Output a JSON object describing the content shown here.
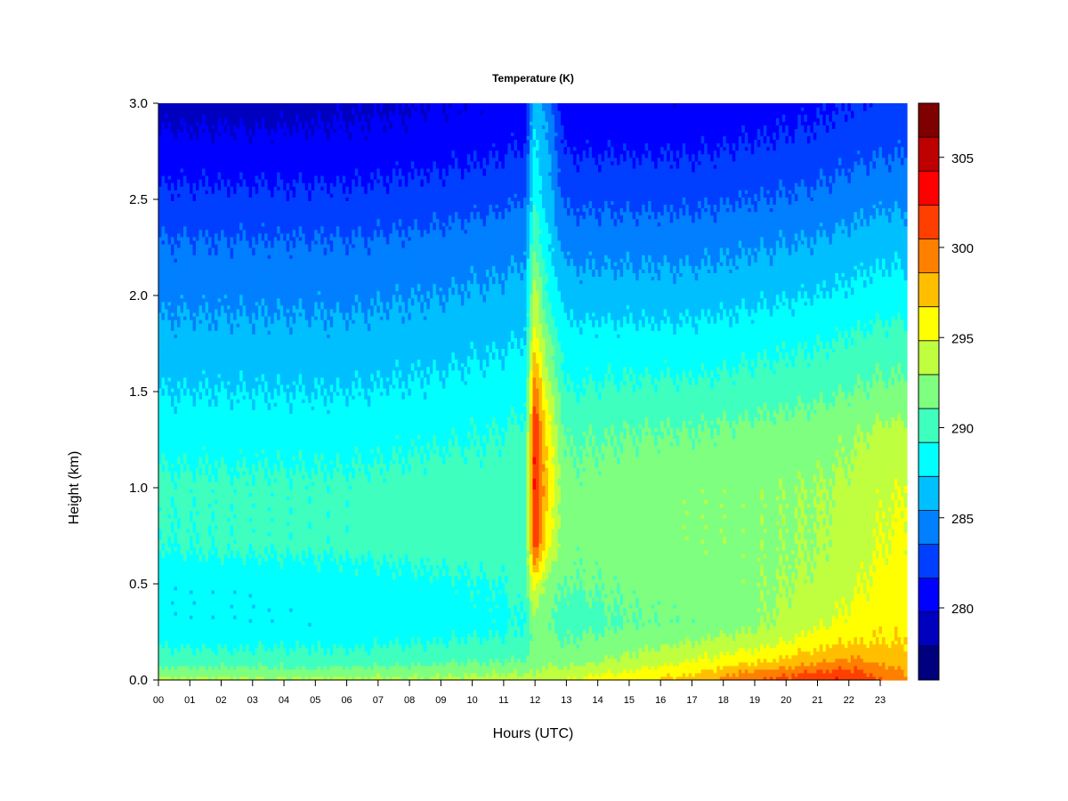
{
  "chart_data": {
    "type": "heatmap",
    "title": "Temperature (K)",
    "xlabel": "Hours (UTC)",
    "ylabel": "Height (km)",
    "x_ticks": [
      "00",
      "01",
      "02",
      "03",
      "04",
      "05",
      "06",
      "07",
      "08",
      "09",
      "10",
      "11",
      "12",
      "13",
      "14",
      "15",
      "16",
      "17",
      "18",
      "19",
      "20",
      "21",
      "22",
      "23"
    ],
    "y_ticks": [
      "0.0",
      "0.5",
      "1.0",
      "1.5",
      "2.0",
      "2.5",
      "3.0"
    ],
    "xlim": [
      0,
      23.85
    ],
    "ylim": [
      0,
      3.0
    ],
    "colorbar": {
      "min": 276,
      "max": 308,
      "step": 2,
      "tick_labels": [
        "280",
        "285",
        "290",
        "295",
        "300",
        "305"
      ],
      "colors": [
        "#00007F",
        "#0000BF",
        "#0000FF",
        "#003FFF",
        "#007FFF",
        "#00BFFF",
        "#00FFFF",
        "#3FFFBF",
        "#7FFF7F",
        "#BFFF3F",
        "#FFFF00",
        "#FFBF00",
        "#FF7F00",
        "#FF3F00",
        "#FF0000",
        "#BF0000",
        "#7F0000"
      ]
    },
    "temperature_profile": {
      "heights_km": [
        0.0,
        0.05,
        0.1,
        0.2,
        0.3,
        0.5,
        0.7,
        1.0,
        1.3,
        1.5,
        1.8,
        2.0,
        2.3,
        2.5,
        2.8,
        3.0
      ],
      "hours": [
        0,
        3,
        6,
        9,
        11,
        11.7,
        12.0,
        12.4,
        13,
        15,
        17,
        19,
        21,
        22,
        23,
        23.85
      ],
      "values_K": [
        [
          294.5,
          292.5,
          291.0,
          289.5,
          288.5,
          288.5,
          290.0,
          290.5,
          289.0,
          288.0,
          286.5,
          285.5,
          284.0,
          282.5,
          280.5,
          279.0
        ],
        [
          294.5,
          292.5,
          291.0,
          289.5,
          288.5,
          288.5,
          290.5,
          290.5,
          289.0,
          288.0,
          286.5,
          285.5,
          284.0,
          282.5,
          280.5,
          279.0
        ],
        [
          294.5,
          292.5,
          291.0,
          289.5,
          288.5,
          289.0,
          290.5,
          290.5,
          289.0,
          288.0,
          286.5,
          285.5,
          284.0,
          282.5,
          280.5,
          279.5
        ],
        [
          294.5,
          293.0,
          291.5,
          290.0,
          289.0,
          289.5,
          291.0,
          291.0,
          289.5,
          288.5,
          287.0,
          286.0,
          284.5,
          283.0,
          281.0,
          280.0
        ],
        [
          295.0,
          293.5,
          292.0,
          290.5,
          289.5,
          290.0,
          291.0,
          291.0,
          290.0,
          289.0,
          287.5,
          286.5,
          285.0,
          283.5,
          281.5,
          280.5
        ],
        [
          295.0,
          293.5,
          292.0,
          290.5,
          290.0,
          291.0,
          291.5,
          291.5,
          290.5,
          289.5,
          288.0,
          287.0,
          285.5,
          284.0,
          282.0,
          281.0
        ],
        [
          294.5,
          294.0,
          293.5,
          293.0,
          293.5,
          297.0,
          303.5,
          305.0,
          304.5,
          302.0,
          297.0,
          295.0,
          292.0,
          290.0,
          288.5,
          288.0
        ],
        [
          295.5,
          294.5,
          293.5,
          292.5,
          292.0,
          293.0,
          296.5,
          298.0,
          297.0,
          295.0,
          292.0,
          290.0,
          288.0,
          287.0,
          286.0,
          285.0
        ],
        [
          296.0,
          294.5,
          293.0,
          292.0,
          291.0,
          292.0,
          292.5,
          292.5,
          291.5,
          290.0,
          288.5,
          287.0,
          285.0,
          283.5,
          281.5,
          280.5
        ],
        [
          297.5,
          296.0,
          294.5,
          293.0,
          292.0,
          292.5,
          293.0,
          293.0,
          292.0,
          290.5,
          288.5,
          287.0,
          285.0,
          283.5,
          281.5,
          280.5
        ],
        [
          299.0,
          297.5,
          296.0,
          294.0,
          292.5,
          293.0,
          293.5,
          293.5,
          292.0,
          290.5,
          288.5,
          287.0,
          285.0,
          283.5,
          281.5,
          280.5
        ],
        [
          302.0,
          300.0,
          297.5,
          295.0,
          293.5,
          293.5,
          293.5,
          293.5,
          292.5,
          291.0,
          289.0,
          287.5,
          285.5,
          284.0,
          282.0,
          281.0
        ],
        [
          303.5,
          302.0,
          299.5,
          297.0,
          295.5,
          294.5,
          294.0,
          294.0,
          293.0,
          291.5,
          289.5,
          288.0,
          286.0,
          284.5,
          282.5,
          281.5
        ],
        [
          304.0,
          302.5,
          300.5,
          298.0,
          296.5,
          295.5,
          295.0,
          294.5,
          293.5,
          292.0,
          290.0,
          288.5,
          286.5,
          285.0,
          283.0,
          282.0
        ],
        [
          302.0,
          301.0,
          299.5,
          298.0,
          297.5,
          296.5,
          296.0,
          295.5,
          294.5,
          292.5,
          290.5,
          289.0,
          287.0,
          285.5,
          283.5,
          282.5
        ],
        [
          301.0,
          300.0,
          299.0,
          298.0,
          297.5,
          297.0,
          296.5,
          296.0,
          294.5,
          292.5,
          290.5,
          289.0,
          287.0,
          285.5,
          283.5,
          282.5
        ]
      ]
    }
  }
}
